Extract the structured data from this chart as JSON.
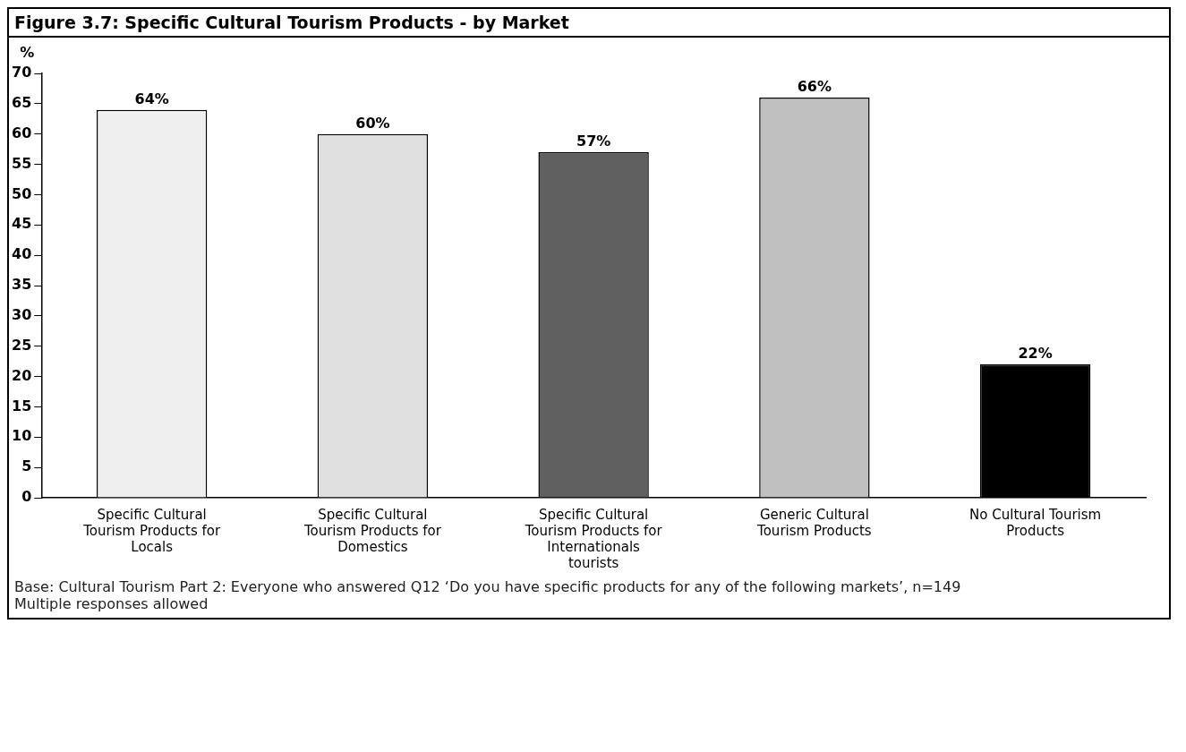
{
  "chart_data": {
    "type": "bar",
    "title": "Figure 3.7: Specific Cultural Tourism Products - by Market",
    "ylabel": "%",
    "categories": [
      "Specific Cultural Tourism Products for Locals",
      "Specific Cultural Tourism Products for Domestics",
      "Specific Cultural Tourism Products for Internationals tourists",
      "Generic Cultural Tourism Products",
      "No Cultural Tourism Products"
    ],
    "values": [
      64,
      60,
      57,
      66,
      22
    ],
    "value_labels": [
      "64%",
      "60%",
      "57%",
      "66%",
      "22%"
    ],
    "colors": [
      "#efefef",
      "#e0e0e0",
      "#5f5f5f",
      "#c0c0c0",
      "#000000"
    ],
    "ylim": [
      0,
      70
    ],
    "yticks": [
      0,
      5,
      10,
      15,
      20,
      25,
      30,
      35,
      40,
      45,
      50,
      55,
      60,
      65,
      70
    ],
    "grid": false,
    "legend": false,
    "annotations": [
      "Base: Cultural Tourism Part 2: Everyone who answered Q12 ‘Do you have specific products for any of the following markets’, n=149",
      "Multiple responses allowed"
    ]
  }
}
